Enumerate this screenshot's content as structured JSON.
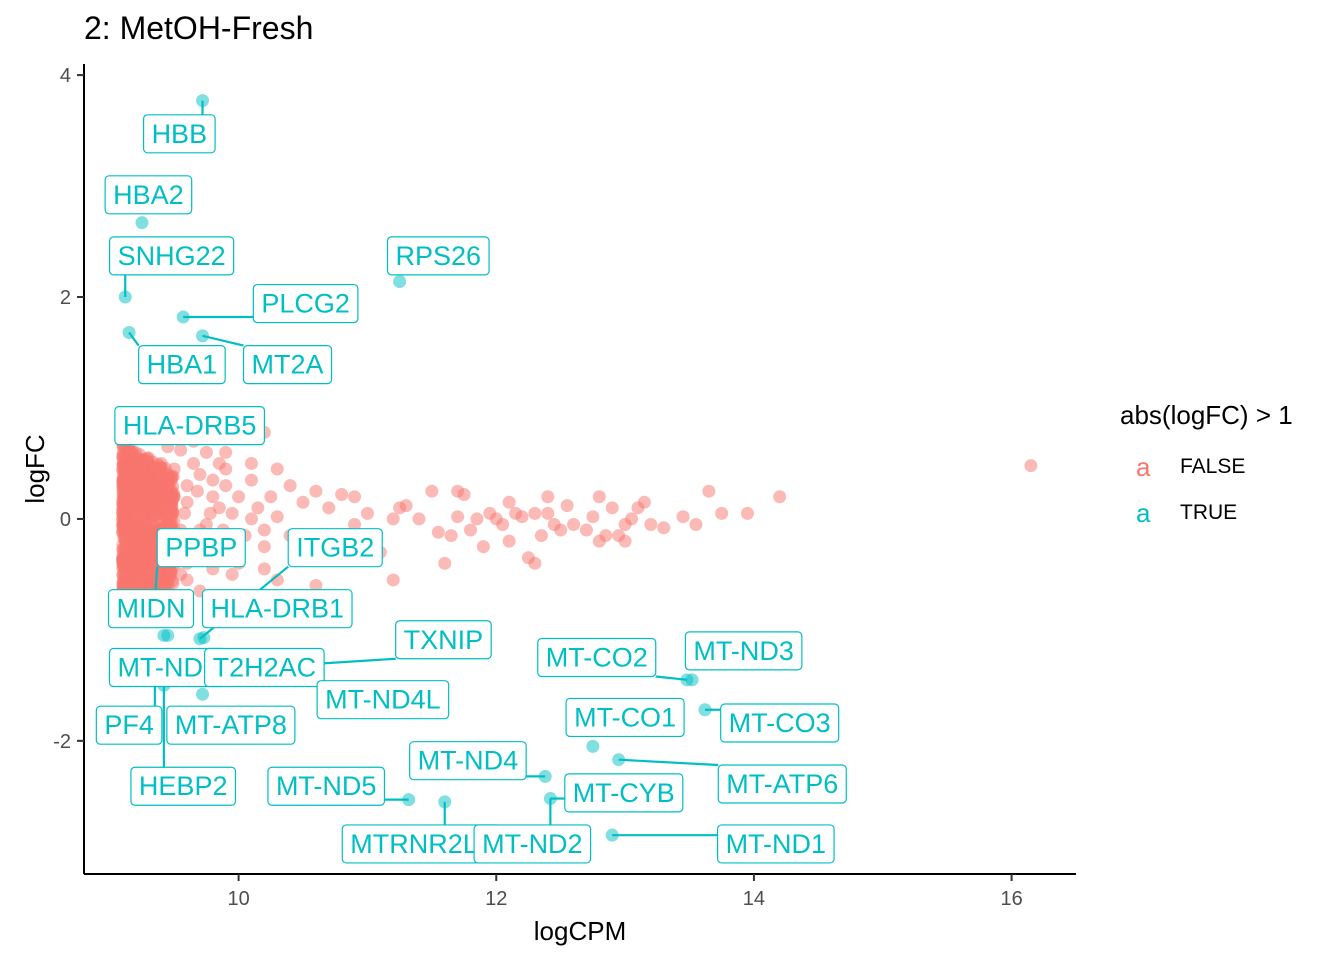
{
  "title": "2: MetOH-Fresh",
  "colors": {
    "false": "#F8766D",
    "true": "#00BFC4"
  },
  "legend": {
    "title": "abs(logFC) > 1",
    "key_glyph": "a",
    "items": [
      {
        "label": "FALSE",
        "color": "#F8766D"
      },
      {
        "label": "TRUE",
        "color": "#00BFC4"
      }
    ]
  },
  "chart_data": {
    "type": "scatter",
    "title": "2: MetOH-Fresh",
    "xlabel": "logCPM",
    "ylabel": "logFC",
    "xlim": [
      8.8,
      16.5
    ],
    "ylim": [
      -3.2,
      4.1
    ],
    "xticks": [
      10,
      12,
      14,
      16
    ],
    "yticks": [
      -2,
      0,
      2,
      4
    ],
    "grid": false,
    "legend_position": "right",
    "series": [
      {
        "name": "FALSE",
        "color": "#F8766D",
        "points": [
          [
            10.0,
            0.75
          ],
          [
            10.2,
            0.78
          ],
          [
            9.9,
            0.6
          ],
          [
            10.1,
            0.5
          ],
          [
            10.3,
            0.45
          ],
          [
            9.8,
            0.35
          ],
          [
            10.4,
            0.3
          ],
          [
            10.6,
            0.25
          ],
          [
            10.8,
            0.22
          ],
          [
            10.5,
            0.15
          ],
          [
            10.7,
            0.1
          ],
          [
            10.9,
            0.2
          ],
          [
            11.0,
            0.05
          ],
          [
            10.3,
            0.02
          ],
          [
            10.2,
            -0.1
          ],
          [
            10.4,
            -0.15
          ],
          [
            10.6,
            -0.2
          ],
          [
            10.8,
            -0.25
          ],
          [
            10.5,
            -0.3
          ],
          [
            10.9,
            -0.05
          ],
          [
            11.2,
            0.0
          ],
          [
            11.3,
            0.12
          ],
          [
            11.25,
            0.1
          ],
          [
            11.1,
            -0.3
          ],
          [
            11.2,
            -0.55
          ],
          [
            10.6,
            -0.6
          ],
          [
            10.0,
            -0.4
          ],
          [
            10.2,
            -0.45
          ],
          [
            9.9,
            -0.3
          ],
          [
            10.05,
            -0.8
          ],
          [
            10.3,
            -0.55
          ],
          [
            11.5,
            0.25
          ],
          [
            11.7,
            0.02
          ],
          [
            11.8,
            -0.1
          ],
          [
            11.9,
            -0.25
          ],
          [
            12.0,
            0.0
          ],
          [
            12.1,
            0.15
          ],
          [
            12.15,
            0.05
          ],
          [
            12.1,
            -0.2
          ],
          [
            11.95,
            0.05
          ],
          [
            11.85,
            0.0
          ],
          [
            11.6,
            -0.4
          ],
          [
            11.7,
            0.25
          ],
          [
            11.75,
            0.22
          ],
          [
            12.3,
            0.05
          ],
          [
            12.35,
            -0.15
          ],
          [
            12.4,
            0.2
          ],
          [
            12.45,
            -0.05
          ],
          [
            12.3,
            -0.4
          ],
          [
            12.5,
            -0.1
          ],
          [
            12.25,
            -0.35
          ],
          [
            12.6,
            -0.05
          ],
          [
            12.7,
            -0.1
          ],
          [
            12.75,
            0.02
          ],
          [
            12.8,
            0.2
          ],
          [
            12.85,
            -0.15
          ],
          [
            12.9,
            0.1
          ],
          [
            13.0,
            -0.05
          ],
          [
            13.1,
            0.1
          ],
          [
            13.2,
            -0.05
          ],
          [
            13.15,
            0.15
          ],
          [
            13.0,
            -0.2
          ],
          [
            12.95,
            -0.15
          ],
          [
            12.8,
            -0.2
          ],
          [
            13.3,
            -0.08
          ],
          [
            13.45,
            0.02
          ],
          [
            13.55,
            -0.05
          ],
          [
            13.65,
            0.25
          ],
          [
            13.75,
            0.05
          ],
          [
            13.95,
            0.05
          ],
          [
            14.2,
            0.2
          ],
          [
            16.15,
            0.48
          ],
          [
            12.2,
            0.02
          ],
          [
            11.4,
            0.0
          ],
          [
            11.55,
            -0.12
          ],
          [
            12.05,
            -0.05
          ],
          [
            12.4,
            0.05
          ],
          [
            12.55,
            0.12
          ],
          [
            13.05,
            0.0
          ],
          [
            11.65,
            -0.15
          ],
          [
            9.2,
            0.6
          ],
          [
            9.3,
            0.55
          ],
          [
            9.4,
            0.5
          ],
          [
            9.5,
            0.45
          ],
          [
            9.6,
            0.3
          ],
          [
            9.7,
            0.4
          ],
          [
            9.8,
            0.2
          ],
          [
            9.35,
            0.2
          ],
          [
            9.45,
            0.1
          ],
          [
            9.55,
            -0.1
          ],
          [
            9.65,
            -0.2
          ],
          [
            9.75,
            -0.3
          ],
          [
            9.85,
            0.1
          ],
          [
            9.25,
            -0.4
          ],
          [
            9.3,
            -0.5
          ],
          [
            9.4,
            -0.6
          ],
          [
            9.5,
            -0.7
          ],
          [
            9.6,
            -0.55
          ],
          [
            9.7,
            -0.65
          ],
          [
            9.8,
            -0.45
          ],
          [
            9.9,
            -0.2
          ],
          [
            9.95,
            0.05
          ],
          [
            9.35,
            0.45
          ],
          [
            9.45,
            0.65
          ],
          [
            9.55,
            0.62
          ],
          [
            9.65,
            0.7
          ],
          [
            9.75,
            0.6
          ],
          [
            9.85,
            0.5
          ],
          [
            9.25,
            0.3
          ],
          [
            9.4,
            -0.3
          ],
          [
            9.5,
            0.2
          ],
          [
            9.6,
            0.15
          ],
          [
            9.7,
            -0.1
          ],
          [
            9.8,
            -0.15
          ],
          [
            9.9,
            0.3
          ],
          [
            10.0,
            0.2
          ],
          [
            10.1,
            0.0
          ],
          [
            9.3,
            -0.7
          ],
          [
            9.45,
            -0.75
          ],
          [
            9.6,
            -0.4
          ],
          [
            9.75,
            -0.05
          ],
          [
            9.85,
            -0.35
          ],
          [
            9.95,
            -0.5
          ],
          [
            10.05,
            -0.15
          ],
          [
            10.15,
            0.1
          ],
          [
            9.55,
            -0.5
          ],
          [
            9.65,
            0.5
          ],
          [
            9.35,
            -0.2
          ],
          [
            9.45,
            0.35
          ],
          [
            9.9,
            0.45
          ],
          [
            10.1,
            0.35
          ],
          [
            9.2,
            -0.2
          ],
          [
            9.28,
            0.1
          ],
          [
            9.38,
            0.25
          ],
          [
            9.48,
            -0.05
          ],
          [
            9.58,
            0.05
          ],
          [
            9.68,
            0.25
          ],
          [
            9.78,
            0.05
          ],
          [
            9.88,
            -0.1
          ],
          [
            10.2,
            -0.25
          ],
          [
            10.25,
            0.2
          ]
        ],
        "dense_region": {
          "x": [
            9.1,
            9.5
          ],
          "y": [
            -0.85,
            0.68
          ]
        }
      },
      {
        "name": "TRUE",
        "color": "#00BFC4",
        "points": [
          [
            9.72,
            3.77
          ],
          [
            9.25,
            2.67
          ],
          [
            9.12,
            2.0
          ],
          [
            9.57,
            1.82
          ],
          [
            9.72,
            1.65
          ],
          [
            9.15,
            1.68
          ],
          [
            11.25,
            2.14
          ],
          [
            9.35,
            -0.75
          ],
          [
            9.7,
            -1.08
          ],
          [
            9.73,
            -1.07
          ],
          [
            9.45,
            -1.05
          ],
          [
            9.42,
            -1.05
          ],
          [
            9.35,
            -1.35
          ],
          [
            9.42,
            -1.5
          ],
          [
            9.72,
            -1.58
          ],
          [
            13.48,
            -1.45
          ],
          [
            13.52,
            -1.45
          ],
          [
            13.62,
            -1.72
          ],
          [
            12.75,
            -2.05
          ],
          [
            12.95,
            -2.17
          ],
          [
            12.38,
            -2.32
          ],
          [
            12.42,
            -2.52
          ],
          [
            11.32,
            -2.53
          ],
          [
            11.6,
            -2.55
          ],
          [
            12.9,
            -2.85
          ],
          [
            9.1,
            -1.9
          ]
        ]
      }
    ],
    "labels": [
      {
        "text": "HBB",
        "x": 9.72,
        "y": 3.77,
        "lx": 9.54,
        "ly": 3.48
      },
      {
        "text": "HBA2",
        "x": 9.25,
        "y": 2.67,
        "lx": 9.3,
        "ly": 2.93
      },
      {
        "text": "SNHG22",
        "x": 9.12,
        "y": 2.0,
        "lx": 9.48,
        "ly": 2.38
      },
      {
        "text": "RPS26",
        "x": 11.25,
        "y": 2.14,
        "lx": 11.55,
        "ly": 2.38
      },
      {
        "text": "PLCG2",
        "x": 9.57,
        "y": 1.82,
        "lx": 10.52,
        "ly": 1.95
      },
      {
        "text": "MT2A",
        "x": 9.72,
        "y": 1.65,
        "lx": 10.38,
        "ly": 1.4
      },
      {
        "text": "HBA1",
        "x": 9.15,
        "y": 1.68,
        "lx": 9.56,
        "ly": 1.4
      },
      {
        "text": "HLA-DRB5",
        "x": 9.4,
        "y": 1.05,
        "lx": 9.62,
        "ly": 0.85
      },
      {
        "text": "ITGB2",
        "x": 9.7,
        "y": -1.08,
        "lx": 10.75,
        "ly": -0.25
      },
      {
        "text": "PPBP",
        "x": 9.35,
        "y": -0.75,
        "lx": 9.71,
        "ly": -0.25
      },
      {
        "text": "MIDN",
        "x": 9.45,
        "y": -1.05,
        "lx": 9.32,
        "ly": -0.8
      },
      {
        "text": "HLA-DRB1",
        "x": 9.73,
        "y": -1.07,
        "lx": 10.3,
        "ly": -0.8
      },
      {
        "text": "TXNIP",
        "x": 10.0,
        "y": -1.35,
        "lx": 11.59,
        "ly": -1.08
      },
      {
        "text": "MT-ND6",
        "x": 9.42,
        "y": -1.5,
        "lx": 9.45,
        "ly": -1.33
      },
      {
        "text": "T2H2AC",
        "x": 10.3,
        "y": -1.38,
        "lx": 10.2,
        "ly": -1.33
      },
      {
        "text": "MT-ND4L",
        "x": 10.3,
        "y": -1.38,
        "lx": 11.12,
        "ly": -1.62
      },
      {
        "text": "PF4",
        "x": 9.35,
        "y": -1.5,
        "lx": 9.15,
        "ly": -1.85
      },
      {
        "text": "MT-ATP8",
        "x": 9.72,
        "y": -1.58,
        "lx": 9.94,
        "ly": -1.85
      },
      {
        "text": "HEBP2",
        "x": 9.42,
        "y": -1.5,
        "lx": 9.57,
        "ly": -2.4
      },
      {
        "text": "MT-ND5",
        "x": 11.32,
        "y": -2.53,
        "lx": 10.68,
        "ly": -2.4
      },
      {
        "text": "MTRNR2L1",
        "x": 11.6,
        "y": -2.55,
        "lx": 11.42,
        "ly": -2.92
      },
      {
        "text": "MT-ND4",
        "x": 12.38,
        "y": -2.32,
        "lx": 11.78,
        "ly": -2.17
      },
      {
        "text": "MT-ND2",
        "x": 12.42,
        "y": -2.52,
        "lx": 12.28,
        "ly": -2.92
      },
      {
        "text": "MT-CYB",
        "x": 12.42,
        "y": -2.52,
        "lx": 12.99,
        "ly": -2.46
      },
      {
        "text": "MT-ND1",
        "x": 12.9,
        "y": -2.85,
        "lx": 14.17,
        "ly": -2.92
      },
      {
        "text": "MT-CO1",
        "x": 12.75,
        "y": -2.05,
        "lx": 13.0,
        "ly": -1.78
      },
      {
        "text": "MT-CO2",
        "x": 13.48,
        "y": -1.45,
        "lx": 12.78,
        "ly": -1.24
      },
      {
        "text": "MT-ND3",
        "x": 13.52,
        "y": -1.45,
        "lx": 13.92,
        "ly": -1.18
      },
      {
        "text": "MT-CO3",
        "x": 13.62,
        "y": -1.72,
        "lx": 14.2,
        "ly": -1.83
      },
      {
        "text": "MT-ATP6",
        "x": 12.95,
        "y": -2.17,
        "lx": 14.22,
        "ly": -2.38
      }
    ]
  }
}
